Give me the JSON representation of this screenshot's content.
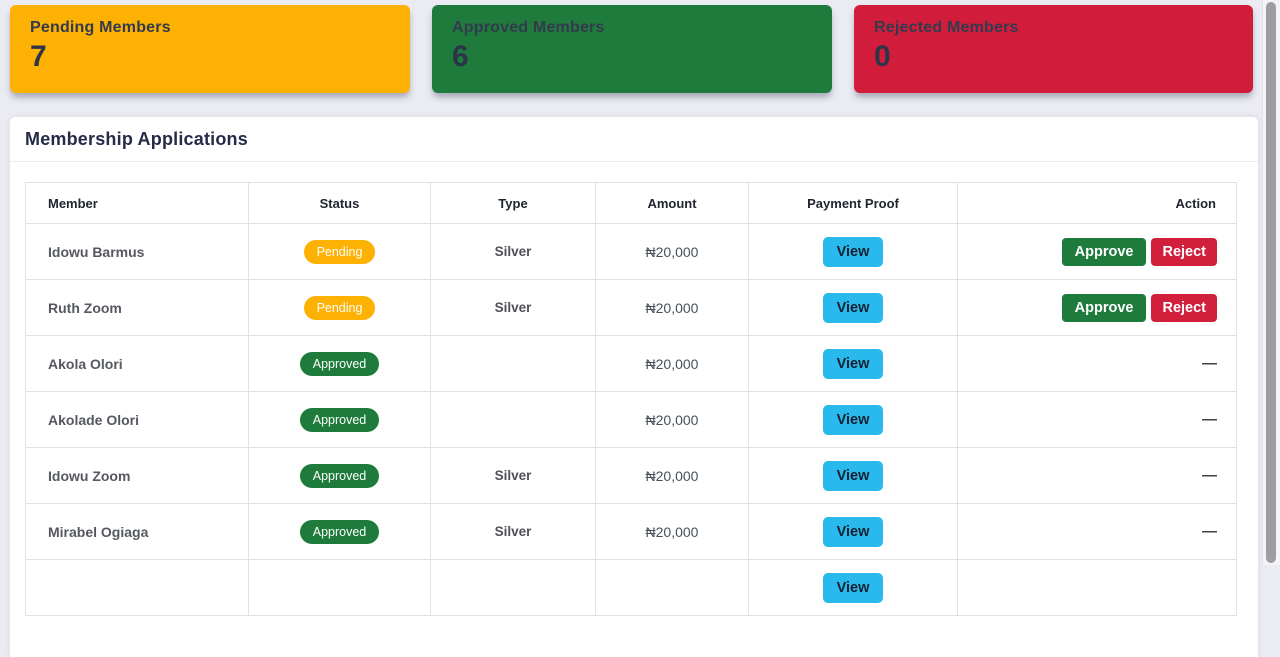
{
  "stats": [
    {
      "id": "pending",
      "label": "Pending Members",
      "value": "7",
      "color": "#fcb103"
    },
    {
      "id": "approved",
      "label": "Approved Members",
      "value": "6",
      "color": "#1e7b3c"
    },
    {
      "id": "rejected",
      "label": "Rejected Members",
      "value": "0",
      "color": "#d21c3c"
    }
  ],
  "panel": {
    "title": "Membership Applications",
    "table": {
      "headers": [
        "Member",
        "Status",
        "Type",
        "Amount",
        "Payment Proof",
        "Action"
      ],
      "rows": [
        {
          "member": "Idowu Barmus",
          "status": "Pending",
          "type": "Silver",
          "amount": "₦20,000",
          "payment_proof": "View",
          "actions": [
            "Approve",
            "Reject"
          ]
        },
        {
          "member": "Ruth Zoom",
          "status": "Pending",
          "type": "Silver",
          "amount": "₦20,000",
          "payment_proof": "View",
          "actions": [
            "Approve",
            "Reject"
          ]
        },
        {
          "member": "Akola Olori",
          "status": "Approved",
          "type": "",
          "amount": "₦20,000",
          "payment_proof": "View",
          "actions": "—"
        },
        {
          "member": "Akolade Olori",
          "status": "Approved",
          "type": "",
          "amount": "₦20,000",
          "payment_proof": "View",
          "actions": "—"
        },
        {
          "member": "Idowu Zoom",
          "status": "Approved",
          "type": "Silver",
          "amount": "₦20,000",
          "payment_proof": "View",
          "actions": "—"
        },
        {
          "member": "Mirabel Ogiaga",
          "status": "Approved",
          "type": "Silver",
          "amount": "₦20,000",
          "payment_proof": "View",
          "actions": "—"
        },
        {
          "member": "",
          "status": "",
          "type": "",
          "amount": "",
          "payment_proof": "View",
          "actions": ""
        }
      ]
    }
  },
  "colors": {
    "page_background": "#ebebf3",
    "status": {
      "Pending": "#fcb103",
      "Approved": "#1e7b3c"
    },
    "button_view": "#29b9ec",
    "button_approve": "#1e7b3c",
    "button_reject": "#d21f3c"
  }
}
